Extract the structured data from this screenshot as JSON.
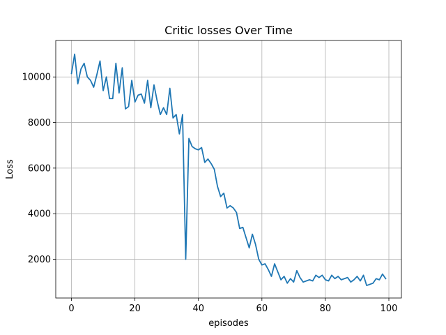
{
  "chart_data": {
    "type": "line",
    "title": "Critic losses Over Time",
    "xlabel": "episodes",
    "ylabel": "Loss",
    "xlim": [
      -4.95,
      103.95
    ],
    "ylim": [
      300,
      11600
    ],
    "grid": true,
    "xticks": [
      0,
      20,
      40,
      60,
      80,
      100
    ],
    "yticks": [
      2000,
      4000,
      6000,
      8000,
      10000
    ],
    "xtick_labels": [
      "0",
      "20",
      "40",
      "60",
      "80",
      "100"
    ],
    "ytick_labels": [
      "2000",
      "4000",
      "6000",
      "8000",
      "10000"
    ],
    "series": [
      {
        "color": "#1f77b4",
        "x": [
          0,
          1,
          2,
          3,
          4,
          5,
          6,
          7,
          8,
          9,
          10,
          11,
          12,
          13,
          14,
          15,
          16,
          17,
          18,
          19,
          20,
          21,
          22,
          23,
          24,
          25,
          26,
          27,
          28,
          29,
          30,
          31,
          32,
          33,
          34,
          35,
          36,
          37,
          38,
          39,
          40,
          41,
          42,
          43,
          44,
          45,
          46,
          47,
          48,
          49,
          50,
          51,
          52,
          53,
          54,
          55,
          56,
          57,
          58,
          59,
          60,
          61,
          62,
          63,
          64,
          65,
          66,
          67,
          68,
          69,
          70,
          71,
          72,
          73,
          74,
          75,
          76,
          77,
          78,
          79,
          80,
          81,
          82,
          83,
          84,
          85,
          86,
          87,
          88,
          89,
          90,
          91,
          92,
          93,
          94,
          95,
          96,
          97,
          98,
          99
        ],
        "values": [
          10150,
          11000,
          9700,
          10350,
          10600,
          10000,
          9850,
          9550,
          10100,
          10700,
          9400,
          10000,
          9050,
          9050,
          10600,
          9300,
          10400,
          8600,
          8700,
          9850,
          8900,
          9200,
          9250,
          8850,
          9850,
          8650,
          9650,
          8950,
          8350,
          8650,
          8350,
          9500,
          8200,
          8350,
          7500,
          8350,
          2000,
          7300,
          6950,
          6850,
          6800,
          6900,
          6250,
          6400,
          6200,
          5950,
          5200,
          4750,
          4900,
          4250,
          4350,
          4250,
          4050,
          3350,
          3400,
          2950,
          2500,
          3100,
          2650,
          2000,
          1750,
          1800,
          1550,
          1250,
          1800,
          1450,
          1100,
          1250,
          950,
          1150,
          1000,
          1500,
          1200,
          1000,
          1050,
          1100,
          1050,
          1300,
          1200,
          1300,
          1100,
          1050,
          1300,
          1150,
          1250,
          1100,
          1150,
          1200,
          1000,
          1100,
          1250,
          1050,
          1300,
          850,
          900,
          950,
          1150,
          1100,
          1350,
          1150
        ]
      }
    ]
  }
}
